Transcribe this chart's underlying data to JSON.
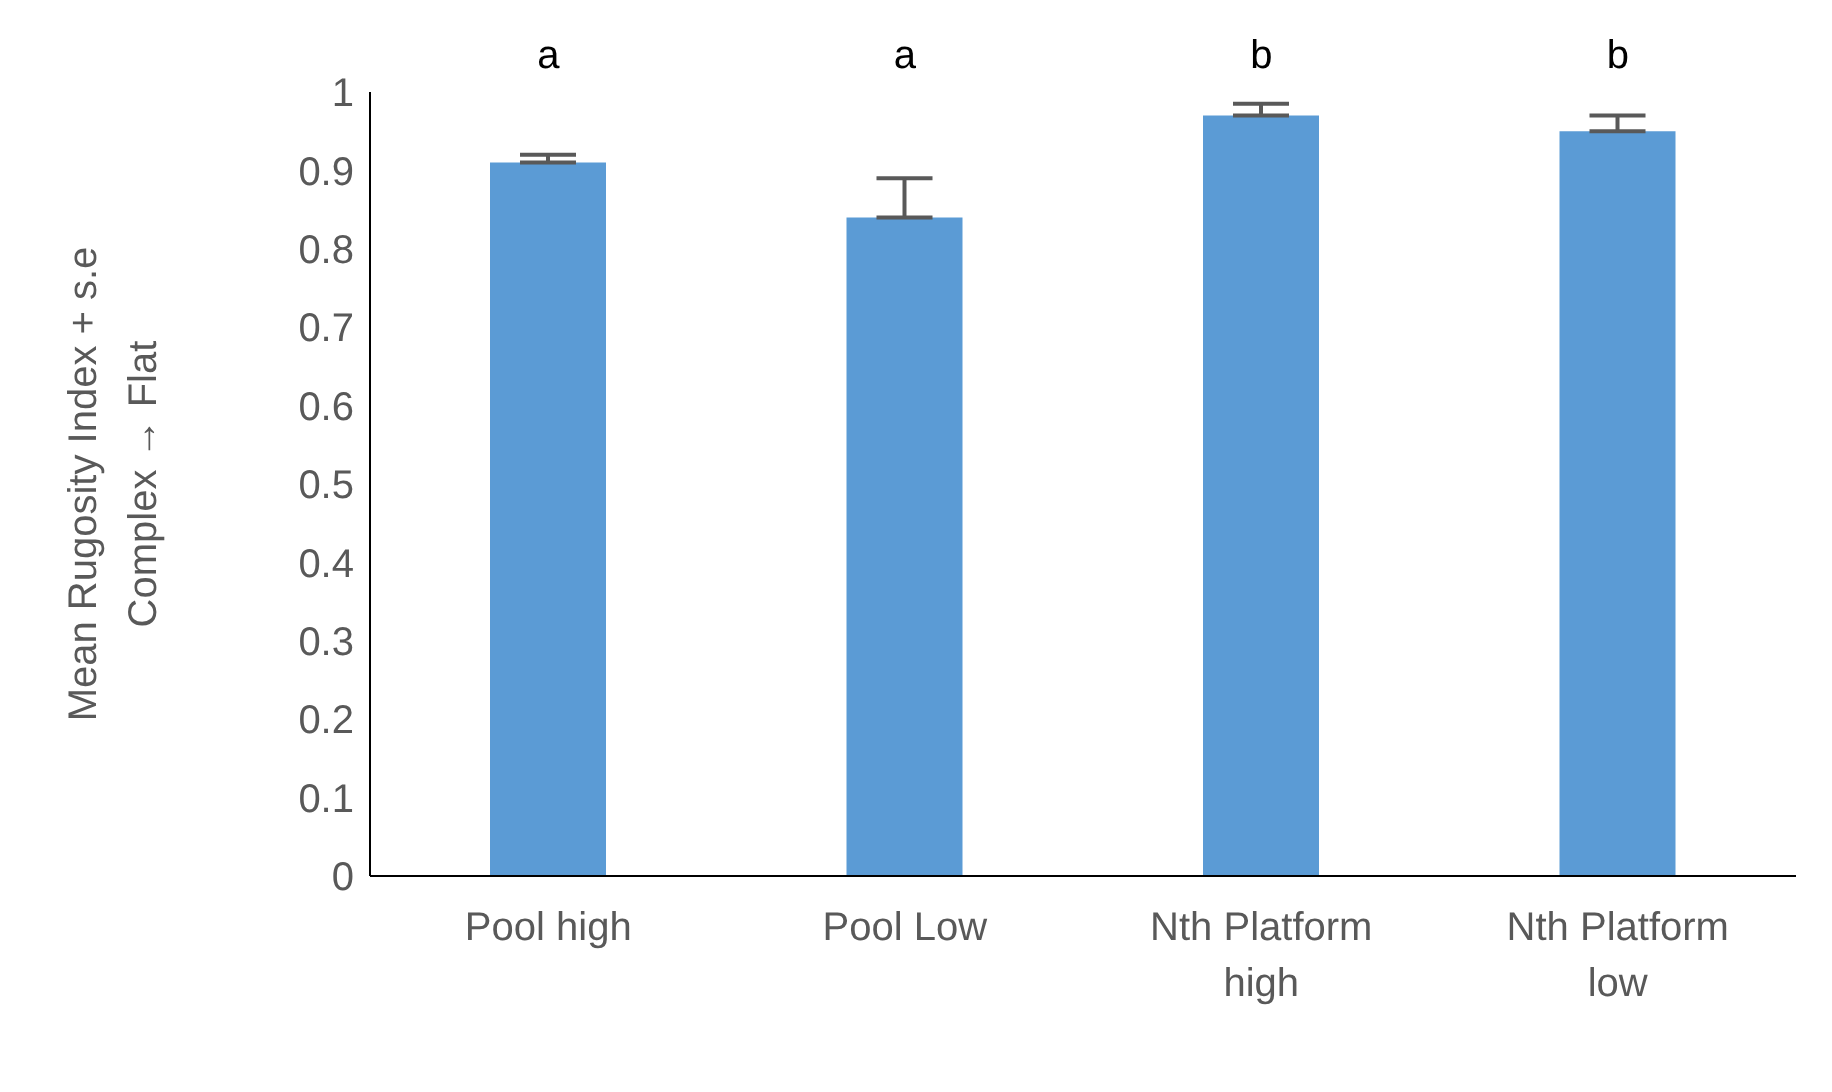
{
  "chart_data": {
    "type": "bar",
    "ylabel": "Mean Rugosity Index + s.e\nComplex  →  Flat",
    "categories": [
      "Pool high",
      "Pool Low",
      "Nth Platform high",
      "Nth Platform low"
    ],
    "values": [
      0.91,
      0.84,
      0.97,
      0.95
    ],
    "errors": [
      0.01,
      0.05,
      0.015,
      0.02
    ],
    "color": "#5b9bd5",
    "ylim": [
      0,
      1
    ],
    "yticks": [
      0,
      0.1,
      0.2,
      0.3,
      0.4,
      0.5,
      0.6,
      0.7,
      0.8,
      0.9,
      1
    ],
    "grid": false,
    "legend": false,
    "annotations": [
      "a",
      "a",
      "b",
      "b"
    ]
  }
}
